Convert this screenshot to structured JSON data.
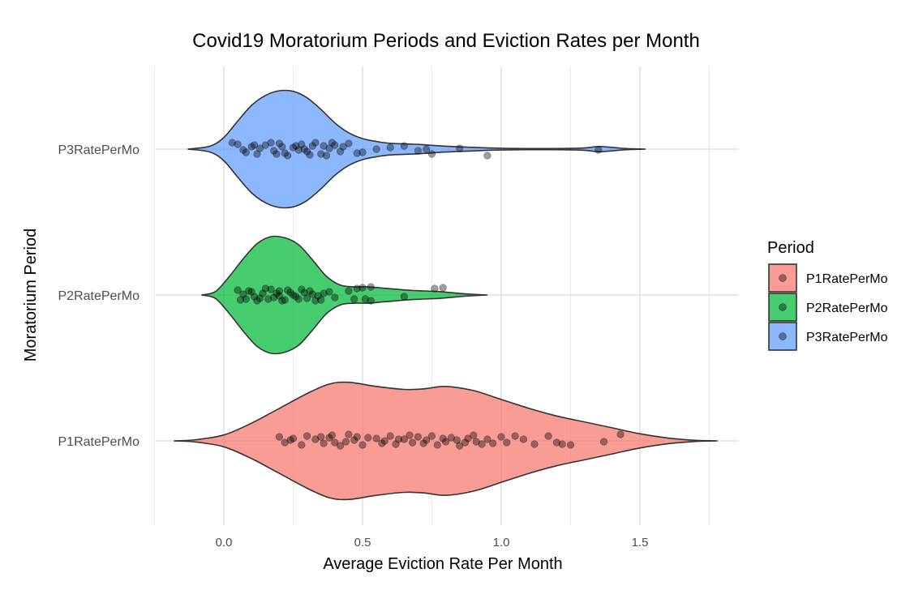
{
  "chart_data": {
    "type": "violin",
    "title": "Covid19 Moratorium Periods and Eviction Rates per Month",
    "xlabel": "Average Eviction Rate Per Month",
    "ylabel": "Moratorium Period",
    "xlim": [
      -0.24,
      1.86
    ],
    "x_ticks": [
      0.0,
      0.5,
      1.0,
      1.5
    ],
    "x_tick_labels": [
      "0.0",
      "0.5",
      "1.0",
      "1.5"
    ],
    "categories": [
      "P1RatePerMo",
      "P2RatePerMo",
      "P3RatePerMo"
    ],
    "grid": true,
    "legend": {
      "title": "Period",
      "position": "right",
      "entries": [
        "P1RatePerMo",
        "P2RatePerMo",
        "P3RatePerMo"
      ]
    },
    "colors": {
      "P1RatePerMo": "#F8766D",
      "P2RatePerMo": "#00BA38",
      "P3RatePerMo": "#619CFF"
    },
    "series": [
      {
        "name": "P1RatePerMo",
        "color": "#F8766D",
        "density_x": [
          -0.18,
          -0.1,
          0.0,
          0.1,
          0.2,
          0.3,
          0.38,
          0.45,
          0.55,
          0.65,
          0.72,
          0.8,
          0.9,
          1.0,
          1.1,
          1.2,
          1.3,
          1.4,
          1.5,
          1.6,
          1.7,
          1.78
        ],
        "density_w": [
          0.0,
          0.02,
          0.1,
          0.3,
          0.55,
          0.8,
          0.96,
          0.99,
          0.92,
          0.87,
          0.88,
          0.92,
          0.85,
          0.7,
          0.55,
          0.42,
          0.32,
          0.22,
          0.12,
          0.05,
          0.01,
          0.0
        ],
        "points": [
          [
            0.35,
            0.05
          ],
          [
            0.38,
            0.04
          ],
          [
            0.4,
            -0.02
          ],
          [
            0.36,
            -0.03
          ],
          [
            0.45,
            0.08
          ],
          [
            0.5,
            -0.05
          ],
          [
            0.55,
            0.03
          ],
          [
            0.6,
            0.06
          ],
          [
            0.62,
            -0.04
          ],
          [
            0.65,
            0.02
          ],
          [
            0.7,
            0.05
          ],
          [
            0.72,
            -0.03
          ],
          [
            0.75,
            0.06
          ],
          [
            0.8,
            -0.01
          ],
          [
            0.82,
            0.04
          ],
          [
            0.85,
            -0.06
          ],
          [
            0.88,
            0.03
          ],
          [
            0.9,
            0.07
          ],
          [
            0.93,
            -0.04
          ],
          [
            0.95,
            0.02
          ],
          [
            1.0,
            0.05
          ],
          [
            1.02,
            -0.02
          ],
          [
            1.05,
            0.06
          ],
          [
            0.3,
            0.06
          ],
          [
            0.28,
            -0.05
          ],
          [
            0.25,
            0.03
          ],
          [
            0.22,
            -0.02
          ],
          [
            0.2,
            0.05
          ],
          [
            0.42,
            -0.06
          ],
          [
            0.47,
            0.01
          ],
          [
            0.52,
            0.04
          ],
          [
            0.57,
            -0.03
          ],
          [
            0.67,
            0.07
          ],
          [
            0.77,
            -0.05
          ],
          [
            0.87,
            -0.02
          ],
          [
            0.97,
            -0.03
          ],
          [
            1.08,
            0.02
          ],
          [
            1.17,
            0.06
          ],
          [
            1.2,
            -0.02
          ],
          [
            1.25,
            -0.05
          ],
          [
            1.37,
            -0.01
          ],
          [
            1.43,
            0.08
          ],
          [
            0.33,
            0.02
          ],
          [
            0.39,
            0.07
          ],
          [
            0.48,
            0.05
          ],
          [
            0.58,
            0.0
          ],
          [
            0.68,
            -0.02
          ],
          [
            0.73,
            0.01
          ],
          [
            0.84,
            0.01
          ],
          [
            0.91,
            -0.01
          ],
          [
            1.12,
            -0.04
          ],
          [
            1.22,
            -0.04
          ],
          [
            0.24,
            0.01
          ],
          [
            0.44,
            -0.01
          ],
          [
            0.63,
            0.02
          ],
          [
            0.79,
            0.03
          ]
        ]
      },
      {
        "name": "P2RatePerMo",
        "color": "#00BA38",
        "density_x": [
          -0.08,
          -0.03,
          0.02,
          0.07,
          0.12,
          0.17,
          0.22,
          0.27,
          0.32,
          0.37,
          0.42,
          0.47,
          0.52,
          0.57,
          0.62,
          0.67,
          0.72,
          0.77,
          0.82,
          0.87,
          0.95
        ],
        "density_w": [
          0.0,
          0.06,
          0.32,
          0.62,
          0.88,
          1.0,
          0.98,
          0.86,
          0.6,
          0.32,
          0.17,
          0.14,
          0.14,
          0.12,
          0.1,
          0.08,
          0.07,
          0.06,
          0.04,
          0.02,
          0.0
        ],
        "points": [
          [
            0.05,
            0.06
          ],
          [
            0.08,
            -0.05
          ],
          [
            0.1,
            0.04
          ],
          [
            0.12,
            -0.07
          ],
          [
            0.14,
            0.02
          ],
          [
            0.15,
            0.08
          ],
          [
            0.18,
            -0.03
          ],
          [
            0.2,
            0.05
          ],
          [
            0.22,
            -0.06
          ],
          [
            0.24,
            0.03
          ],
          [
            0.26,
            -0.02
          ],
          [
            0.28,
            0.07
          ],
          [
            0.3,
            -0.04
          ],
          [
            0.32,
            0.01
          ],
          [
            0.35,
            -0.06
          ],
          [
            0.38,
            0.04
          ],
          [
            0.4,
            -0.03
          ],
          [
            0.07,
            0.01
          ],
          [
            0.11,
            -0.02
          ],
          [
            0.16,
            -0.05
          ],
          [
            0.19,
            0.02
          ],
          [
            0.23,
            0.06
          ],
          [
            0.27,
            -0.05
          ],
          [
            0.31,
            0.05
          ],
          [
            0.34,
            -0.01
          ],
          [
            0.09,
            0.05
          ],
          [
            0.13,
            -0.04
          ],
          [
            0.17,
            0.07
          ],
          [
            0.21,
            -0.07
          ],
          [
            0.25,
            0.0
          ],
          [
            0.29,
            0.03
          ],
          [
            0.36,
            0.02
          ],
          [
            0.45,
            0.05
          ],
          [
            0.48,
            0.08
          ],
          [
            0.5,
            0.09
          ],
          [
            0.53,
            0.1
          ],
          [
            0.47,
            -0.05
          ],
          [
            0.51,
            -0.05
          ],
          [
            0.53,
            -0.07
          ],
          [
            0.65,
            -0.02
          ],
          [
            0.76,
            0.08
          ],
          [
            0.79,
            0.09
          ],
          [
            0.06,
            -0.06
          ],
          [
            0.2,
            -0.01
          ],
          [
            0.33,
            -0.07
          ]
        ]
      },
      {
        "name": "P3RatePerMo",
        "color": "#619CFF",
        "density_x": [
          -0.13,
          -0.05,
          0.0,
          0.05,
          0.1,
          0.15,
          0.2,
          0.25,
          0.3,
          0.35,
          0.4,
          0.45,
          0.5,
          0.55,
          0.6,
          0.7,
          0.8,
          0.9,
          1.0,
          1.1,
          1.2,
          1.3,
          1.35,
          1.4,
          1.45,
          1.52
        ],
        "density_w": [
          0.0,
          0.05,
          0.2,
          0.48,
          0.75,
          0.92,
          1.0,
          0.99,
          0.88,
          0.68,
          0.45,
          0.28,
          0.18,
          0.13,
          0.1,
          0.08,
          0.05,
          0.03,
          0.015,
          0.01,
          0.01,
          0.02,
          0.045,
          0.03,
          0.01,
          0.0
        ],
        "points": [
          [
            0.05,
            0.06
          ],
          [
            0.08,
            -0.04
          ],
          [
            0.1,
            0.03
          ],
          [
            0.12,
            -0.06
          ],
          [
            0.15,
            0.05
          ],
          [
            0.18,
            -0.02
          ],
          [
            0.2,
            0.07
          ],
          [
            0.22,
            -0.05
          ],
          [
            0.25,
            0.02
          ],
          [
            0.28,
            0.06
          ],
          [
            0.3,
            -0.03
          ],
          [
            0.32,
            0.04
          ],
          [
            0.35,
            -0.06
          ],
          [
            0.38,
            0.01
          ],
          [
            0.4,
            0.05
          ],
          [
            0.42,
            -0.03
          ],
          [
            0.45,
            0.07
          ],
          [
            0.48,
            -0.05
          ],
          [
            0.55,
            0.0
          ],
          [
            0.6,
            0.02
          ],
          [
            0.7,
            -0.02
          ],
          [
            0.75,
            -0.06
          ],
          [
            0.85,
            0.01
          ],
          [
            0.95,
            -0.08
          ],
          [
            1.35,
            -0.01
          ],
          [
            0.03,
            0.08
          ],
          [
            0.13,
            0.01
          ],
          [
            0.17,
            0.08
          ],
          [
            0.23,
            -0.08
          ],
          [
            0.27,
            -0.01
          ],
          [
            0.33,
            0.08
          ],
          [
            0.37,
            -0.08
          ],
          [
            0.43,
            0.03
          ],
          [
            0.5,
            -0.04
          ],
          [
            0.65,
            0.04
          ],
          [
            0.73,
            0.0
          ],
          [
            0.11,
            0.05
          ],
          [
            0.21,
            0.03
          ],
          [
            0.29,
            0.0
          ],
          [
            0.36,
            0.04
          ],
          [
            0.19,
            -0.06
          ],
          [
            0.26,
            0.04
          ],
          [
            0.31,
            -0.07
          ],
          [
            0.39,
            0.08
          ],
          [
            0.07,
            -0.01
          ]
        ]
      }
    ]
  }
}
